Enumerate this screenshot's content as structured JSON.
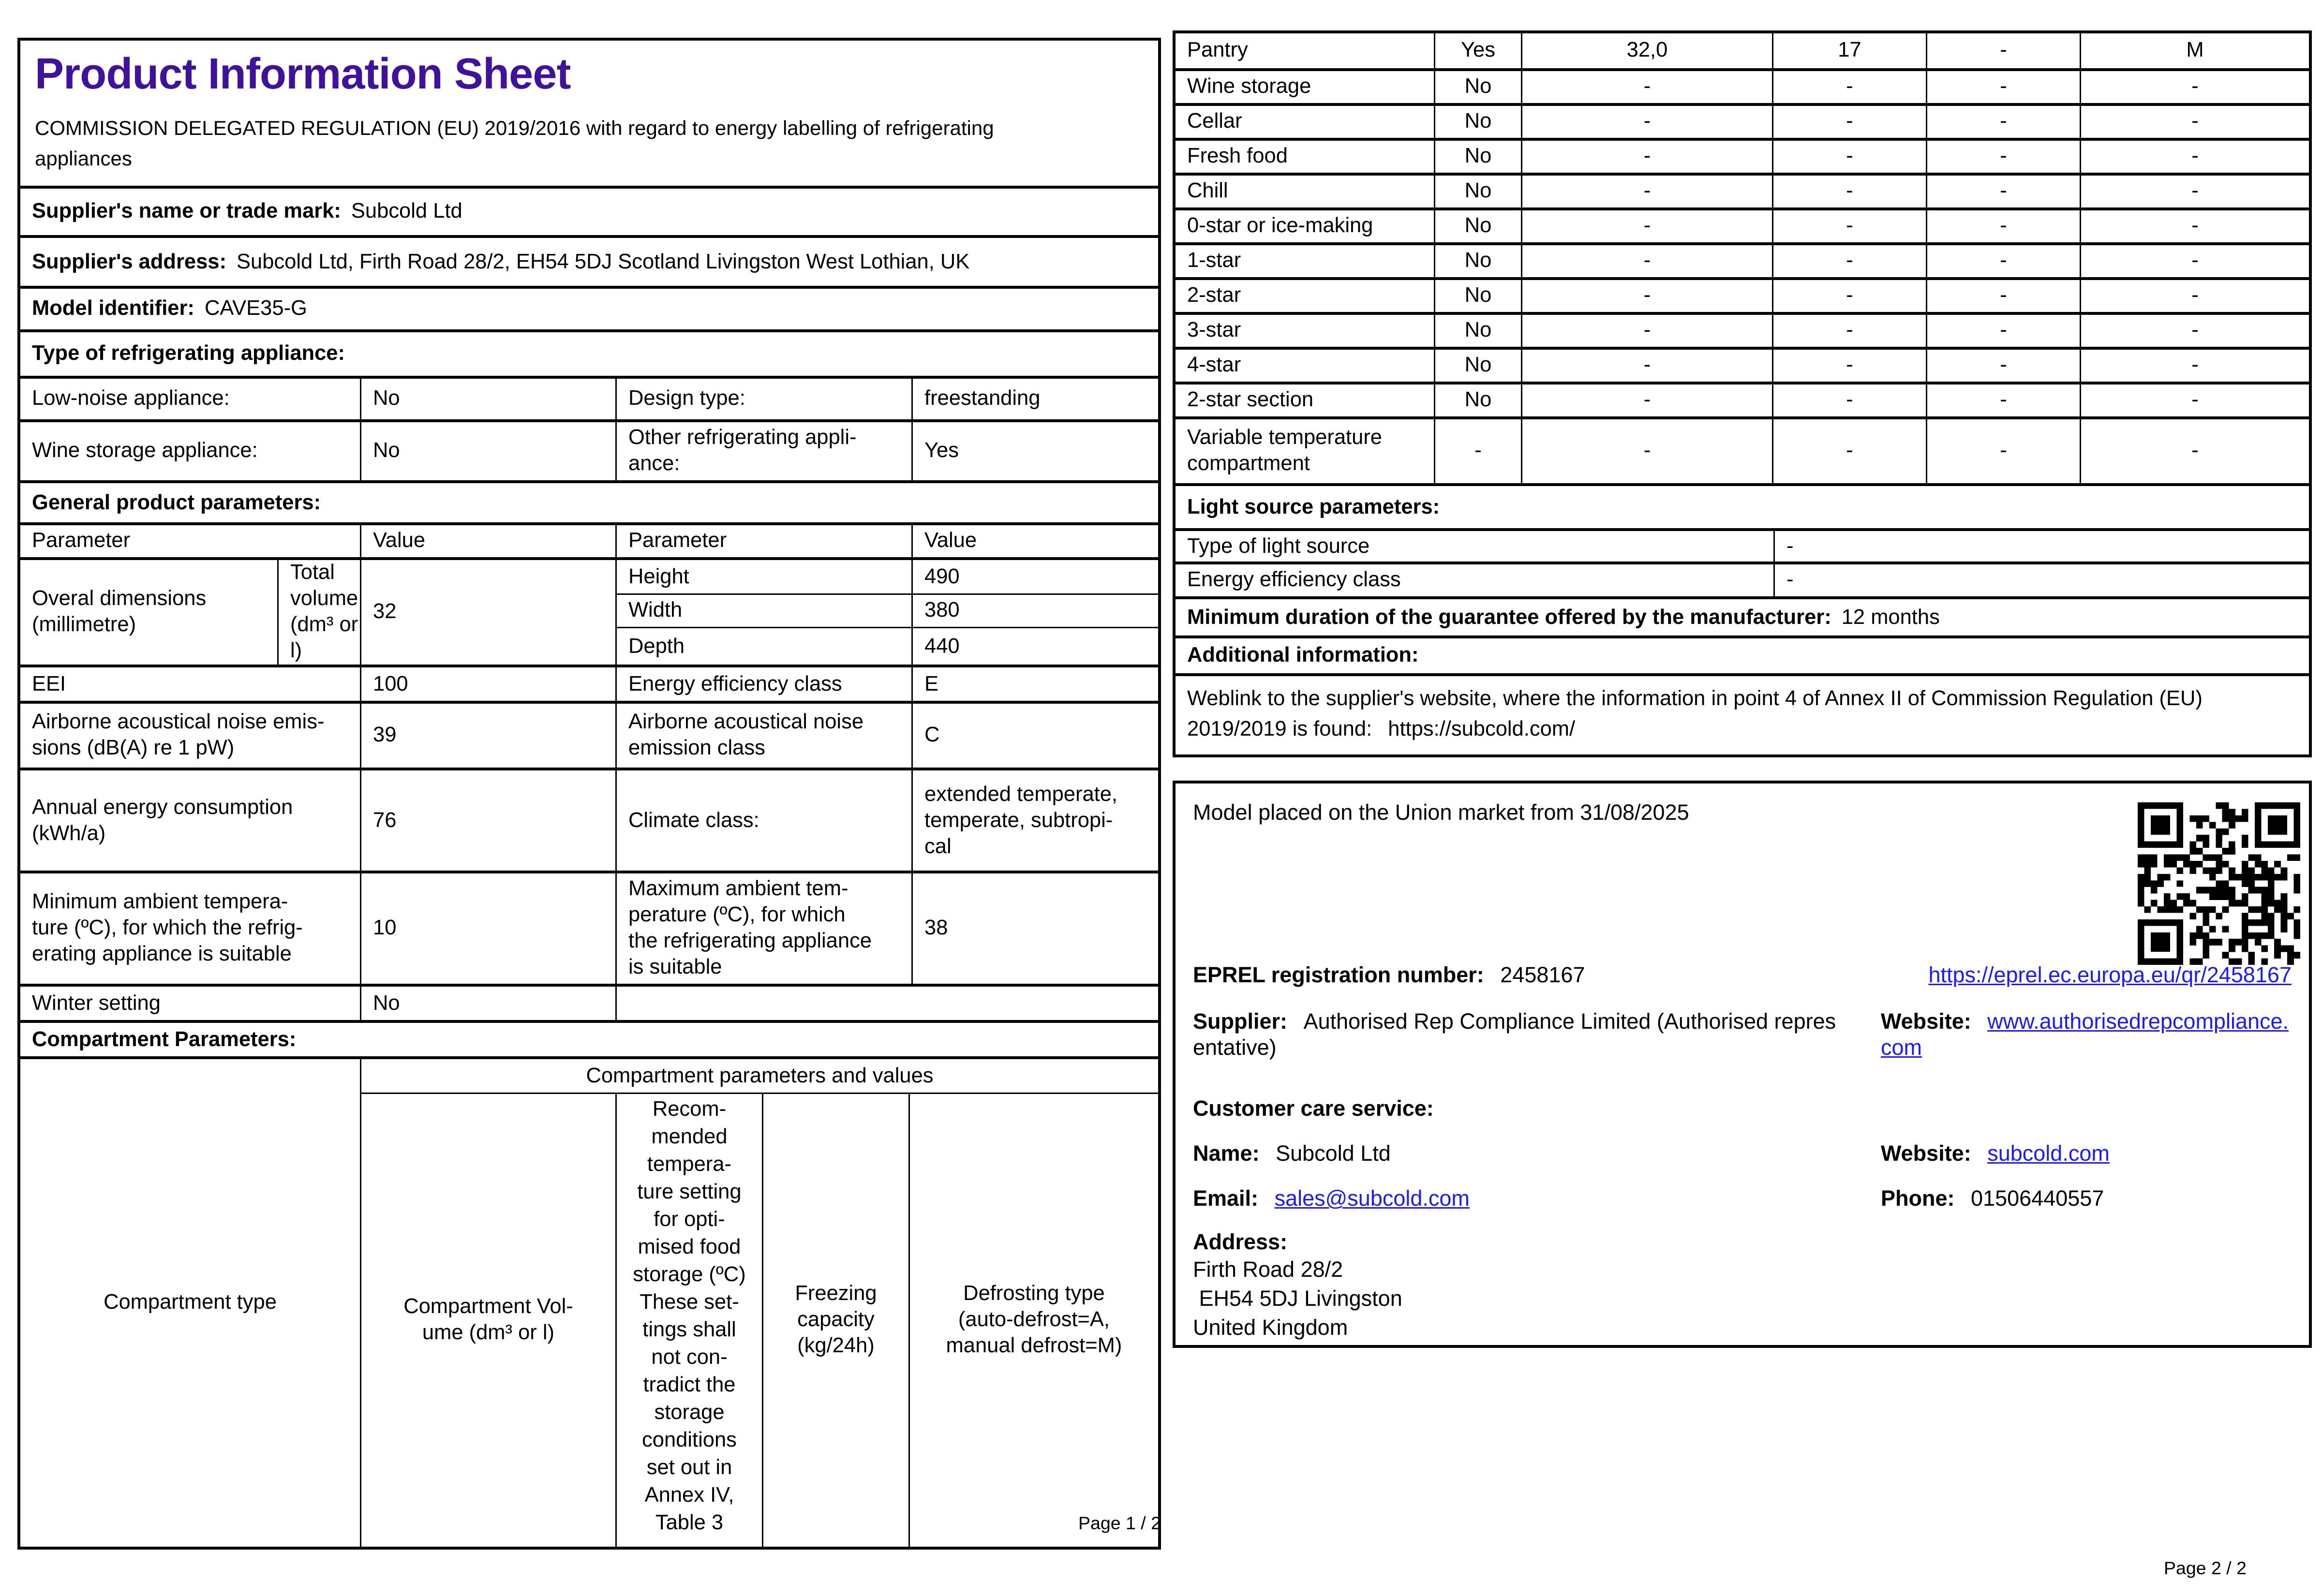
{
  "colors": {
    "accent": "#40129B",
    "link": "#1B1BF0"
  },
  "page1": {
    "title": "Product Information Sheet",
    "subtitle": "COMMISSION DELEGATED REGULATION (EU) 2019/2016 with regard to energy labelling of refrigerating\nappliances",
    "supplier_name": {
      "label": "Supplier's name or trade mark:",
      "value": "Subcold Ltd"
    },
    "supplier_address": {
      "label": "Supplier's address:",
      "value": "Subcold Ltd, Firth Road 28/2, EH54 5DJ Scotland Livingston West Lothian, UK"
    },
    "model_identifier": {
      "label": "Model identifier:",
      "value": "CAVE35-G"
    },
    "type_header": "Type of refrigerating appliance:",
    "type_rows": [
      {
        "c1": "Low-noise appliance:",
        "c2": "No",
        "c3": "Design type:",
        "c4": "freestanding"
      },
      {
        "c1": "Wine storage appliance:",
        "c2": "No",
        "c3": "Other refrigerating appli-\nance:",
        "c4": "Yes"
      }
    ],
    "general_header": "General product parameters:",
    "param_header": {
      "p1": "Parameter",
      "v1": "Value",
      "p2": "Parameter",
      "v2": "Value"
    },
    "dimensions": {
      "label": "Overal dimensions\n(millimetre)",
      "rows": [
        {
          "k": "Height",
          "v": "490"
        },
        {
          "k": "Width",
          "v": "380"
        },
        {
          "k": "Depth",
          "v": "440"
        }
      ],
      "right_label": "Total volume (dm³ or l)",
      "right_value": "32"
    },
    "rows": [
      {
        "c1": "EEI",
        "c2": "100",
        "c3": "Energy efficiency class",
        "c4": "E"
      },
      {
        "c1": "Airborne acoustical noise emis-\nsions (dB(A) re 1 pW)",
        "c2": "39",
        "c3": "Airborne acoustical noise\nemission class",
        "c4": "C"
      },
      {
        "c1": "Annual energy consumption\n(kWh/a)",
        "c2": "76",
        "c3": "Climate class:",
        "c4": "extended temperate,\ntemperate, subtropi-\ncal"
      },
      {
        "c1": "Minimum ambient tempera-\nture (ºC), for which the refrig-\nerating appliance is suitable",
        "c2": "10",
        "c3": "Maximum ambient tem-\nperature (ºC), for which\nthe refrigerating appliance\nis suitable",
        "c4": "38"
      },
      {
        "c1": "Winter setting",
        "c2": "No",
        "c3": "",
        "c4": ""
      }
    ],
    "compartment_header": "Compartment Parameters:",
    "compartment_table": {
      "col_type": "Compartment type",
      "group_header": "Compartment parameters and values",
      "col_volume": "Compartment Vol-\nume (dm³ or l)",
      "col_temp_top": "Recom-\nmended\ntempera-\nture setting\nfor opti-\nmised food\nstorage (ºC)",
      "col_temp_bottom": "These set-\ntings shall\nnot con-\ntradict the\nstorage\nconditions\nset out in\nAnnex IV,\nTable 3",
      "col_freeze": "Freezing\ncapacity\n(kg/24h)",
      "col_defrost": "Defrosting type\n(auto-defrost=A,\nmanual defrost=M)"
    },
    "footer": "Page 1 / 2"
  },
  "page2": {
    "compartment_rows": [
      {
        "name": "Pantry",
        "cells": [
          "Yes",
          "32,0",
          "17",
          "-",
          "M"
        ]
      },
      {
        "name": "Wine storage",
        "cells": [
          "No",
          "-",
          "-",
          "-",
          "-"
        ]
      },
      {
        "name": "Cellar",
        "cells": [
          "No",
          "-",
          "-",
          "-",
          "-"
        ]
      },
      {
        "name": "Fresh food",
        "cells": [
          "No",
          "-",
          "-",
          "-",
          "-"
        ]
      },
      {
        "name": "Chill",
        "cells": [
          "No",
          "-",
          "-",
          "-",
          "-"
        ]
      },
      {
        "name": "0-star or ice-making",
        "cells": [
          "No",
          "-",
          "-",
          "-",
          "-"
        ]
      },
      {
        "name": "1-star",
        "cells": [
          "No",
          "-",
          "-",
          "-",
          "-"
        ]
      },
      {
        "name": "2-star",
        "cells": [
          "No",
          "-",
          "-",
          "-",
          "-"
        ]
      },
      {
        "name": "3-star",
        "cells": [
          "No",
          "-",
          "-",
          "-",
          "-"
        ]
      },
      {
        "name": "4-star",
        "cells": [
          "No",
          "-",
          "-",
          "-",
          "-"
        ]
      },
      {
        "name": "2-star section",
        "cells": [
          "No",
          "-",
          "-",
          "-",
          "-"
        ]
      },
      {
        "name": "Variable temperature\ncompartment",
        "cells": [
          "-",
          "-",
          "-",
          "-",
          "-"
        ]
      }
    ],
    "light_header": "Light source parameters:",
    "light_rows": [
      {
        "label": "Type of light source",
        "value": "-"
      },
      {
        "label": "Energy efficiency class",
        "value": "-"
      }
    ],
    "guarantee": {
      "label": "Minimum duration of the guarantee offered by the manufacturer:",
      "value": "12 months"
    },
    "additional_header": "Additional information:",
    "weblink": {
      "text": "Weblink to the supplier's website, where the information in point 4 of Annex II of Commission Regulation (EU)\n2019/2019 is found:",
      "url": "https://subcold.com/"
    },
    "box": {
      "market_line": "Model placed on the Union market from 31/08/2025",
      "eprel": {
        "label": "EPREL registration number:",
        "value": "2458167",
        "link": "https://eprel.ec.europa.eu/qr/2458167"
      },
      "supplier": {
        "label": "Supplier:",
        "value": "Authorised Rep Compliance Limited (Authorised repres\nentative)"
      },
      "website_rep": {
        "label": "Website:",
        "link": "www.authorisedrepcompliance.\ncom"
      },
      "care_header": "Customer care service:",
      "care_name": {
        "label": "Name:",
        "value": "Subcold Ltd"
      },
      "care_website": {
        "label": "Website:",
        "link": "subcold.com"
      },
      "care_email": {
        "label": "Email:",
        "link": "sales@subcold.com"
      },
      "care_phone": {
        "label": "Phone:",
        "value": "01506440557"
      },
      "address_label": "Address:",
      "address_lines": "Firth Road 28/2\n EH54 5DJ Livingston\nUnited Kingdom"
    },
    "footer": "Page 2 / 2"
  }
}
